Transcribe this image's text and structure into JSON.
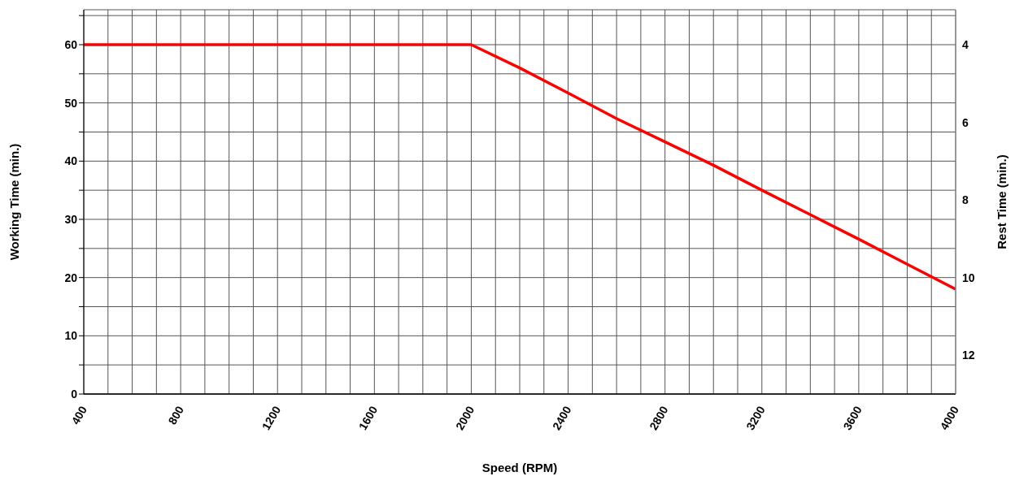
{
  "chart_data": {
    "type": "line",
    "xlabel": "Speed (RPM)",
    "ylabel": "Working Time (min.)",
    "y2label": "Rest Time (min.)",
    "x": [
      400,
      2000,
      2200,
      2400,
      2600,
      2800,
      3000,
      3200,
      3400,
      3600,
      3800,
      4000
    ],
    "series": [
      {
        "color": "#ff0000",
        "values": [
          60,
          60,
          56,
          51.7,
          47.3,
          43.3,
          39.3,
          35,
          30.8,
          26.6,
          22.3,
          18
        ]
      }
    ],
    "xlim": [
      400,
      4000
    ],
    "xticks": [
      400,
      {
        "value": 500,
        "label": null
      },
      {
        "value": 600,
        "label": null
      },
      {
        "value": 700,
        "label": null
      },
      800,
      {
        "value": 900,
        "label": null
      },
      {
        "value": 1000,
        "label": null
      },
      {
        "value": 1100,
        "label": null
      },
      1200,
      {
        "value": 1300,
        "label": null
      },
      {
        "value": 1400,
        "label": null
      },
      {
        "value": 1500,
        "label": null
      },
      1600,
      {
        "value": 1700,
        "label": null
      },
      {
        "value": 1800,
        "label": null
      },
      {
        "value": 1900,
        "label": null
      },
      2000,
      {
        "value": 2100,
        "label": null
      },
      {
        "value": 2200,
        "label": null
      },
      {
        "value": 2300,
        "label": null
      },
      2400,
      {
        "value": 2500,
        "label": null
      },
      {
        "value": 2600,
        "label": null
      },
      {
        "value": 2700,
        "label": null
      },
      2800,
      {
        "value": 2900,
        "label": null
      },
      {
        "value": 3000,
        "label": null
      },
      {
        "value": 3100,
        "label": null
      },
      3200,
      {
        "value": 3300,
        "label": null
      },
      {
        "value": 3400,
        "label": null
      },
      {
        "value": 3500,
        "label": null
      },
      3600,
      {
        "value": 3700,
        "label": null
      },
      {
        "value": 3800,
        "label": null
      },
      {
        "value": 3900,
        "label": null
      },
      4000
    ],
    "ylim": [
      0,
      66
    ],
    "yticks": [
      0,
      {
        "value": 5,
        "label": null
      },
      10,
      {
        "value": 15,
        "label": null
      },
      20,
      {
        "value": 25,
        "label": null
      },
      30,
      {
        "value": 35,
        "label": null
      },
      40,
      {
        "value": 45,
        "label": null
      },
      50,
      {
        "value": 55,
        "label": null
      },
      60,
      {
        "value": 65,
        "label": null
      }
    ],
    "y2lim": [
      13,
      3.1
    ],
    "y2ticks": [
      4,
      6,
      8,
      10,
      12
    ],
    "grid": true,
    "marker": "none",
    "line_style": "solid"
  }
}
